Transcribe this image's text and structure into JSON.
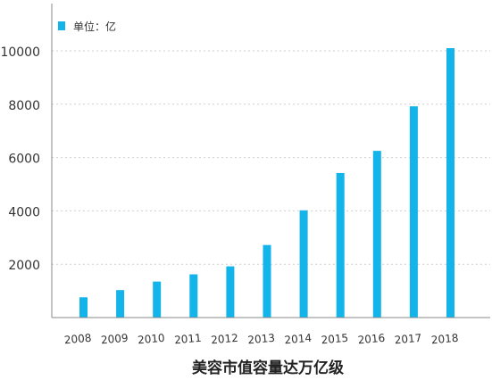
{
  "chart_data": {
    "type": "bar",
    "title": "美容市值容量达万亿级",
    "legend": {
      "label": "单位：亿",
      "placement": "top-left"
    },
    "categories": [
      "2008",
      "2009",
      "2010",
      "2011",
      "2012",
      "2013",
      "2014",
      "2015",
      "2016",
      "2017",
      "2018"
    ],
    "series": [
      {
        "name": "单位：亿",
        "values": [
          760,
          1030,
          1350,
          1620,
          1920,
          2720,
          4020,
          5420,
          6250,
          7920,
          10100
        ]
      }
    ],
    "y_ticks": [
      "2000",
      "4000",
      "6000",
      "8000",
      "10000"
    ],
    "ylim": [
      0,
      11000
    ],
    "grid": true,
    "colors": {
      "bar": "#12b4ea",
      "grid": "#cfcfcf",
      "axis": "#888888",
      "text": "#333333",
      "title": "#222222"
    }
  }
}
